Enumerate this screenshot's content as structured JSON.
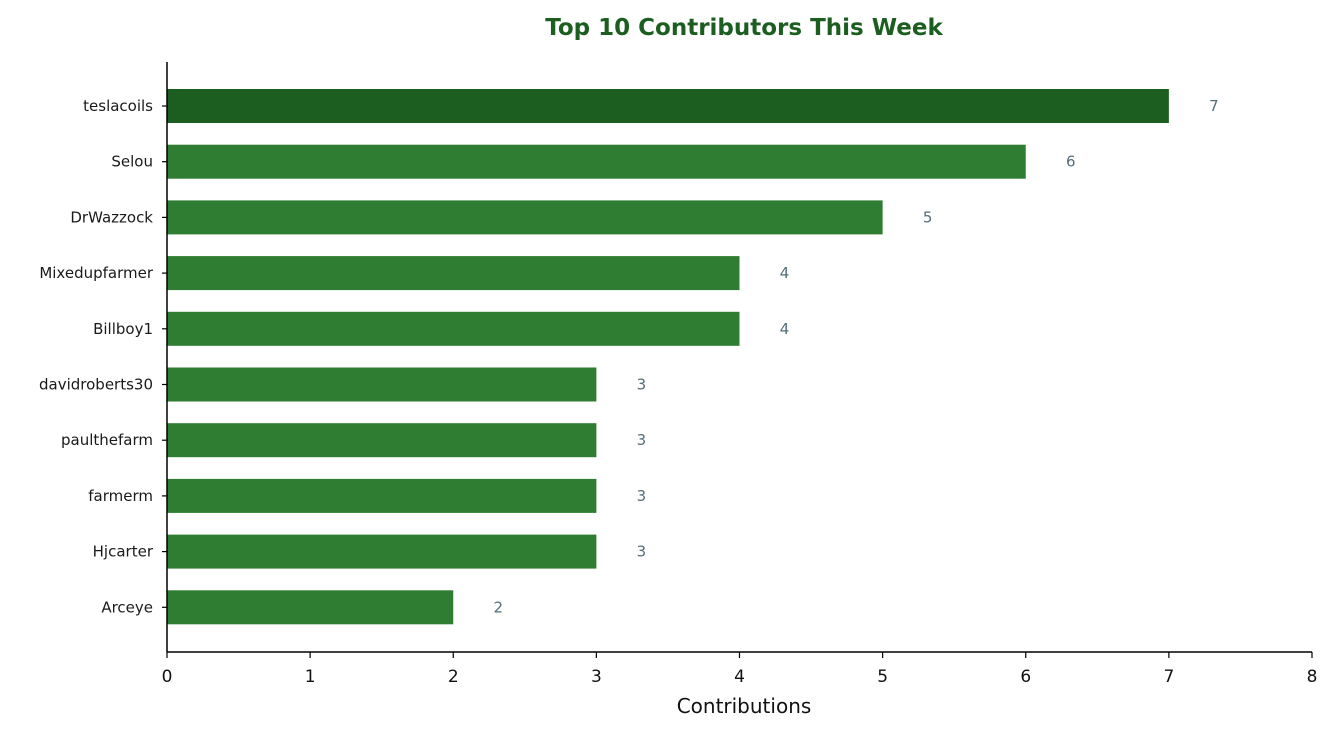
{
  "chart_data": {
    "type": "bar",
    "orientation": "horizontal",
    "title": "Top 10 Contributors This Week",
    "xlabel": "Contributions",
    "ylabel": "",
    "categories": [
      "teslacoils",
      "Selou",
      "DrWazzock",
      "Mixedupfarmer",
      "Billboy1",
      "davidroberts30",
      "paulthefarm",
      "farmerm",
      "Hjcarter",
      "Arceye"
    ],
    "values": [
      7,
      6,
      5,
      4,
      4,
      3,
      3,
      3,
      3,
      2
    ],
    "xlim": [
      0,
      8
    ],
    "xticks": [
      0,
      1,
      2,
      3,
      4,
      5,
      6,
      7,
      8
    ],
    "grid": false,
    "legend": "none",
    "highlight_index": 0
  },
  "colors": {
    "title": "#1b5e20",
    "bar": "#2e7d32",
    "bar_highlight": "#1b5e20",
    "value_label": "#546e7a",
    "axis": "#000000"
  }
}
